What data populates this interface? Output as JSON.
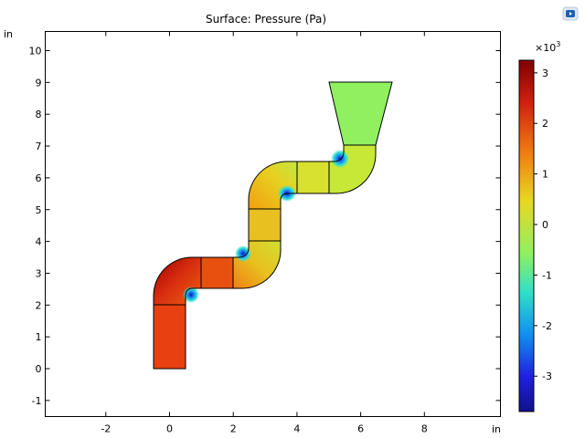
{
  "title": "Surface: Pressure (Pa)",
  "axis_unit_y": "in",
  "axis_unit_x": "in",
  "colorbar": {
    "multiplier": "×10",
    "exponent": "3",
    "ticks": [
      "3",
      "2",
      "1",
      "0",
      "-1",
      "-2",
      "-3"
    ],
    "tick_values": [
      3,
      2,
      1,
      0,
      -1,
      -2,
      -3
    ],
    "min": -3.7,
    "max": 3.25
  },
  "x_ticks": [
    "-2",
    "0",
    "2",
    "4",
    "6",
    "8"
  ],
  "x_tick_values": [
    -2,
    0,
    2,
    4,
    6,
    8
  ],
  "y_ticks": [
    "-1",
    "0",
    "1",
    "2",
    "3",
    "4",
    "5",
    "6",
    "7",
    "8",
    "9",
    "10"
  ],
  "y_tick_values": [
    -1,
    0,
    1,
    2,
    3,
    4,
    5,
    6,
    7,
    8,
    9,
    10
  ],
  "colors": {
    "high": "#b30000",
    "mid_high": "#f08a10",
    "zero": "#90f060",
    "low": "#1010c0",
    "outline": "#000000"
  },
  "toolbar": {
    "icon": "view-icon"
  }
}
